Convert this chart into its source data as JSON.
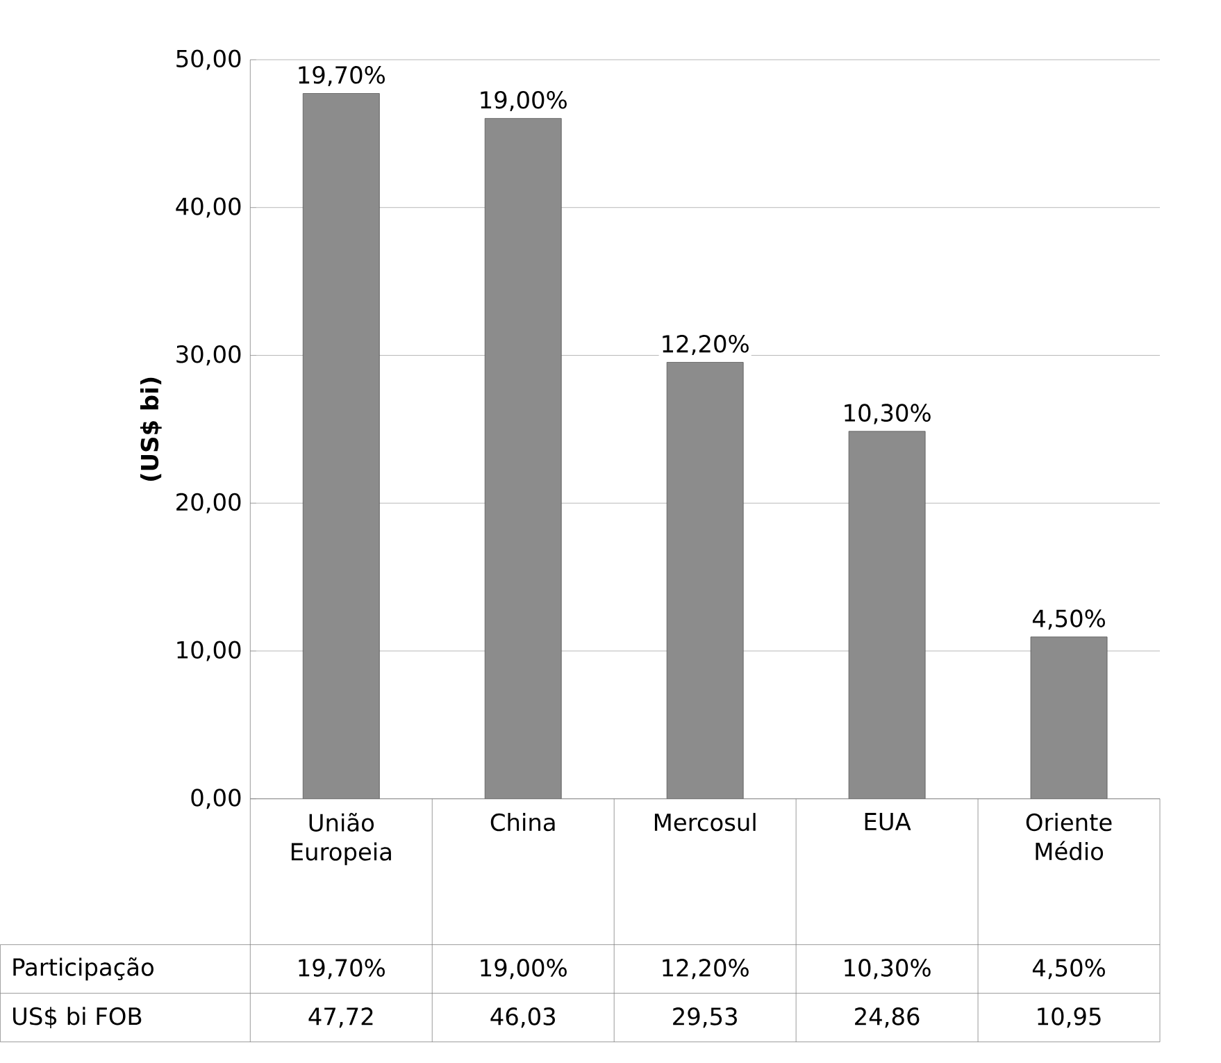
{
  "chart_data": {
    "type": "bar",
    "ylabel": "(US$ bi)",
    "categories": [
      "União Europeia",
      "China",
      "Mercosul",
      "EUA",
      "Oriente Médio"
    ],
    "series": [
      {
        "name": "US$ bi FOB",
        "color": "#8c8c8c",
        "values": [
          47.72,
          46.03,
          29.53,
          24.86,
          10.95
        ],
        "value_labels": [
          "47,72",
          "46,03",
          "29,53",
          "24,86",
          "10,95"
        ]
      }
    ],
    "annotations": [
      "Participação",
      {
        "text": "19,70%",
        "x": "União Europeia",
        "y": 47.72
      },
      {
        "text": "19,00%",
        "x": "China",
        "y": 46.03
      },
      {
        "text": "12,20%",
        "x": "Mercosul",
        "y": 29.53
      },
      {
        "text": "10,30%",
        "x": "EUA",
        "y": 24.86
      },
      {
        "text": "4,50%",
        "x": "Oriente Médio",
        "y": 10.95
      }
    ],
    "ylim": [
      0,
      50
    ],
    "yticks": [
      {
        "value": 0,
        "label": "0,00"
      },
      {
        "value": 10,
        "label": "10,00"
      },
      {
        "value": 20,
        "label": "20,00"
      },
      {
        "value": 30,
        "label": "30,00"
      },
      {
        "value": 40,
        "label": "40,00"
      },
      {
        "value": 50,
        "label": "50,00"
      }
    ],
    "grid": "y"
  }
}
